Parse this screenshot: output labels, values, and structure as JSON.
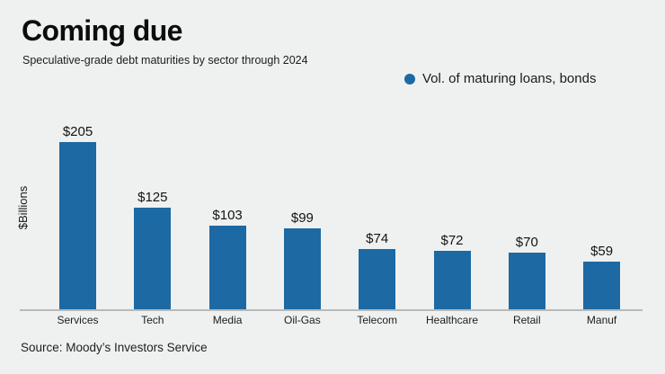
{
  "header": {
    "title": "Coming due",
    "subtitle": "Speculative-grade debt maturities by sector through 2024"
  },
  "legend": {
    "label": "Vol. of maturing loans, bonds",
    "marker_color": "#1d69a3"
  },
  "chart_data": {
    "type": "bar",
    "title": "Coming due",
    "subtitle": "Speculative-grade debt maturities by sector through 2024",
    "categories": [
      "Services",
      "Tech",
      "Media",
      "Oil-Gas",
      "Telecom",
      "Healthcare",
      "Retail",
      "Manuf"
    ],
    "values": [
      205,
      125,
      103,
      99,
      74,
      72,
      70,
      59
    ],
    "value_labels": [
      "$205",
      "$125",
      "$103",
      "$99",
      "$74",
      "$72",
      "$70",
      "$59"
    ],
    "series_name": "Vol. of maturing loans, bonds",
    "xlabel": "",
    "ylabel": "$Billions",
    "ylim": [
      0,
      225
    ],
    "bar_color": "#1d69a3",
    "background_color": "#eff1f1",
    "axis_line_color": "#b8baba",
    "grid": "off",
    "legend_position": "top-right",
    "data_labels": "above-bars"
  },
  "footer": {
    "source": "Source: Moody’s Investors Service"
  }
}
